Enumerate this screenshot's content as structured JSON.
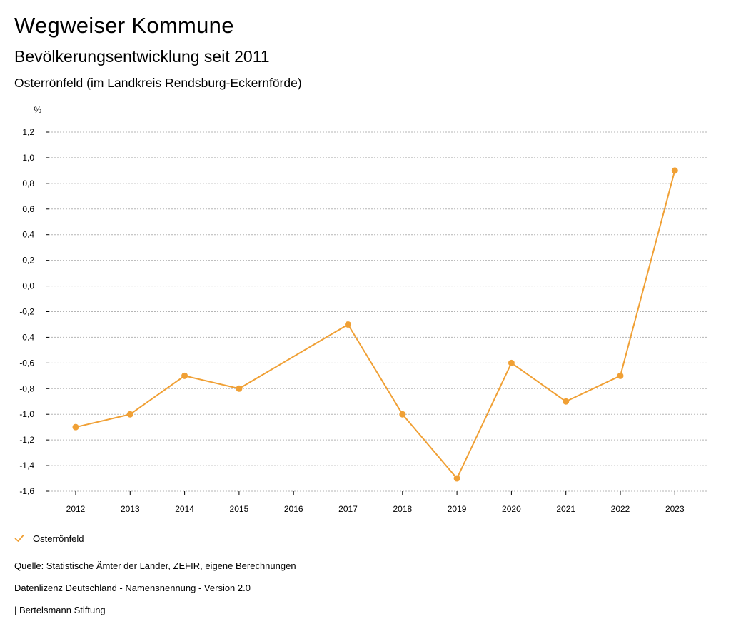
{
  "header": {
    "title": "Wegweiser Kommune",
    "subtitle": "Bevölkerungsentwicklung seit 2011",
    "municipality": "Osterrönfeld (im Landkreis Rendsburg-Eckernförde)"
  },
  "legend": {
    "label": "Osterrönfeld"
  },
  "footer": {
    "source": "Quelle: Statistische Ämter der Länder, ZEFIR, eigene Berechnungen",
    "license": "Datenlizenz Deutschland - Namensnennung - Version 2.0",
    "publisher": "| Bertelsmann Stiftung"
  },
  "colors": {
    "series": "#f0a035",
    "grid": "#b5b5b5",
    "axis": "#000000"
  },
  "chart_data": {
    "type": "line",
    "title": "Bevölkerungsentwicklung seit 2011",
    "ylabel": "%",
    "xlabel": "",
    "ylim": [
      -1.6,
      1.2
    ],
    "yticks": [
      "1,2",
      "1,0",
      "0,8",
      "0,6",
      "0,4",
      "0,2",
      "0,0",
      "-0,2",
      "-0,4",
      "-0,6",
      "-0,8",
      "-1,0",
      "-1,2",
      "-1,4",
      "-1,6"
    ],
    "ytick_values": [
      1.2,
      1.0,
      0.8,
      0.6,
      0.4,
      0.2,
      0.0,
      -0.2,
      -0.4,
      -0.6,
      -0.8,
      -1.0,
      -1.2,
      -1.4,
      -1.6
    ],
    "categories": [
      "2012",
      "2013",
      "2014",
      "2015",
      "2016",
      "2017",
      "2018",
      "2019",
      "2020",
      "2021",
      "2022",
      "2023"
    ],
    "grid": true,
    "legend_position": "bottom-left",
    "series": [
      {
        "name": "Osterrönfeld",
        "values": [
          -1.1,
          -1.0,
          -0.7,
          -0.8,
          null,
          -0.3,
          -1.0,
          -1.5,
          -0.6,
          -0.9,
          -0.7,
          0.9
        ]
      }
    ]
  }
}
